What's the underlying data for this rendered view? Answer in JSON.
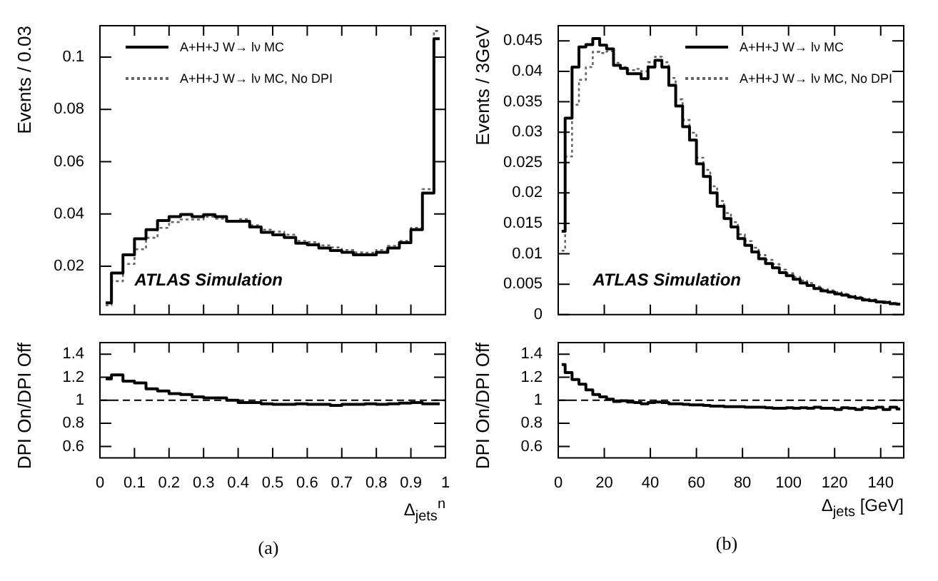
{
  "chart_data": [
    {
      "type": "step",
      "ylabel": "Events / 0.03",
      "annotations": [
        "ATLAS Simulation"
      ],
      "legend": "top left",
      "tick_labels": "y",
      "xlim": [
        0,
        1
      ],
      "xticks": [
        0,
        0.1,
        0.2,
        0.3,
        0.4,
        0.5,
        0.6,
        0.7,
        0.8,
        0.9,
        1
      ],
      "ylim": [
        0.0015,
        0.112
      ],
      "yticks": [
        0.02,
        0.04,
        0.06,
        0.08,
        0.1
      ],
      "x": [
        0.0167,
        0.05,
        0.0833,
        0.1167,
        0.15,
        0.1833,
        0.2167,
        0.25,
        0.2833,
        0.3167,
        0.35,
        0.3833,
        0.4167,
        0.45,
        0.4833,
        0.5167,
        0.55,
        0.5833,
        0.6167,
        0.65,
        0.6833,
        0.7167,
        0.75,
        0.7833,
        0.8167,
        0.85,
        0.8833,
        0.9167,
        0.95,
        0.9833
      ],
      "series": [
        {
          "name": "A+H+J W→ lν MC",
          "color": "#000000",
          "line_style": "solid",
          "values": [
            0.006,
            0.0174,
            0.0244,
            0.0305,
            0.034,
            0.0375,
            0.039,
            0.0398,
            0.039,
            0.0397,
            0.039,
            0.0372,
            0.0372,
            0.035,
            0.033,
            0.032,
            0.031,
            0.0288,
            0.0282,
            0.027,
            0.026,
            0.0253,
            0.0244,
            0.0244,
            0.0253,
            0.027,
            0.029,
            0.034,
            0.048,
            0.107
          ]
        },
        {
          "name": "A+H+J W→ lν MC, No DPI",
          "color": "#666666",
          "line_style": "dotted",
          "values": [
            0.0051,
            0.0143,
            0.0209,
            0.0265,
            0.0309,
            0.0347,
            0.0369,
            0.0379,
            0.0379,
            0.0389,
            0.0382,
            0.0372,
            0.038,
            0.0357,
            0.034,
            0.0332,
            0.0321,
            0.0297,
            0.0292,
            0.028,
            0.0272,
            0.0262,
            0.0253,
            0.0252,
            0.0262,
            0.0278,
            0.0297,
            0.0347,
            0.0495,
            0.11
          ]
        }
      ]
    },
    {
      "type": "step",
      "ylabel": "Events / 3GeV",
      "annotations": [
        "ATLAS Simulation"
      ],
      "legend": "top right",
      "tick_labels": "y",
      "xlim": [
        0,
        150
      ],
      "xticks": [
        0,
        20,
        40,
        60,
        80,
        100,
        120,
        140
      ],
      "ylim": [
        0,
        0.0475
      ],
      "yticks": [
        0,
        0.005,
        0.01,
        0.015,
        0.02,
        0.025,
        0.03,
        0.035,
        0.04,
        0.045
      ],
      "x": [
        1.5,
        4.5,
        7.5,
        10.5,
        13.5,
        16.5,
        19.5,
        22.5,
        25.5,
        28.5,
        31.5,
        34.5,
        37.5,
        40.5,
        43.5,
        46.5,
        49.5,
        52.5,
        55.5,
        58.5,
        61.5,
        64.5,
        67.5,
        70.5,
        73.5,
        76.5,
        79.5,
        82.5,
        85.5,
        88.5,
        91.5,
        94.5,
        97.5,
        100.5,
        103.5,
        106.5,
        109.5,
        112.5,
        115.5,
        118.5,
        121.5,
        124.5,
        127.5,
        130.5,
        133.5,
        136.5,
        139.5,
        142.5,
        145.5,
        148.5
      ],
      "series": [
        {
          "name": "A+H+J W→ lν MC",
          "color": "#000000",
          "line_style": "solid",
          "values": [
            0.0137,
            0.0323,
            0.0407,
            0.044,
            0.0444,
            0.0454,
            0.0443,
            0.0437,
            0.041,
            0.0405,
            0.0396,
            0.0396,
            0.0388,
            0.0407,
            0.0418,
            0.0407,
            0.0377,
            0.0343,
            0.0309,
            0.0287,
            0.0248,
            0.0227,
            0.02,
            0.0178,
            0.0158,
            0.0144,
            0.0125,
            0.0114,
            0.0103,
            0.0092,
            0.0084,
            0.0077,
            0.0069,
            0.0064,
            0.0058,
            0.0052,
            0.0048,
            0.0043,
            0.0039,
            0.0037,
            0.0034,
            0.0032,
            0.0029,
            0.0027,
            0.0024,
            0.0023,
            0.0021,
            0.002,
            0.0018,
            0.0017
          ]
        },
        {
          "name": "A+H+J W→ lν MC, No DPI",
          "color": "#666666",
          "line_style": "dotted",
          "values": [
            0.0105,
            0.026,
            0.0345,
            0.0386,
            0.0407,
            0.0432,
            0.043,
            0.0433,
            0.0414,
            0.0407,
            0.0402,
            0.0404,
            0.04,
            0.0415,
            0.0424,
            0.0415,
            0.0389,
            0.0354,
            0.032,
            0.0299,
            0.0258,
            0.0238,
            0.0211,
            0.0187,
            0.0167,
            0.0152,
            0.0132,
            0.0121,
            0.011,
            0.0098,
            0.009,
            0.0083,
            0.0074,
            0.0068,
            0.0062,
            0.0056,
            0.0052,
            0.0046,
            0.0042,
            0.004,
            0.0037,
            0.0034,
            0.0031,
            0.0029,
            0.0026,
            0.0025,
            0.0022,
            0.0022,
            0.0019,
            0.0018
          ]
        }
      ]
    },
    {
      "type": "step",
      "ylabel": "DPI On/DPI Off",
      "xlabel": "Δ$_{jets}$$^{n}$",
      "annotations": [
        "(a)"
      ],
      "xlim": [
        0,
        1
      ],
      "xticks": [
        0,
        0.1,
        0.2,
        0.3,
        0.4,
        0.5,
        0.6,
        0.7,
        0.8,
        0.9,
        1
      ],
      "ylim": [
        0.5,
        1.5
      ],
      "yticks": [
        0.6,
        0.8,
        1,
        1.2,
        1.4
      ],
      "ref_lines": [
        {
          "axis": "y",
          "value": 1,
          "line_style": "dashed"
        }
      ],
      "x": [
        0.0167,
        0.05,
        0.0833,
        0.1167,
        0.15,
        0.1833,
        0.2167,
        0.25,
        0.2833,
        0.3167,
        0.35,
        0.3833,
        0.4167,
        0.45,
        0.4833,
        0.5167,
        0.55,
        0.5833,
        0.6167,
        0.65,
        0.6833,
        0.7167,
        0.75,
        0.7833,
        0.8167,
        0.85,
        0.8833,
        0.9167,
        0.95,
        0.9833
      ],
      "series": [
        {
          "color": "#000000",
          "line_style": "solid",
          "values": [
            1.186,
            1.22,
            1.166,
            1.15,
            1.1,
            1.08,
            1.057,
            1.05,
            1.03,
            1.02,
            1.02,
            1.0,
            0.98,
            0.98,
            0.97,
            0.965,
            0.965,
            0.97,
            0.965,
            0.965,
            0.955,
            0.965,
            0.965,
            0.97,
            0.965,
            0.97,
            0.975,
            0.98,
            0.97,
            0.97
          ]
        }
      ]
    },
    {
      "type": "step",
      "ylabel": "DPI On/DPI Off",
      "xlabel": "Δ$_{jets}$ [GeV]",
      "annotations": [
        "(b)"
      ],
      "xlim": [
        0,
        150
      ],
      "xticks": [
        0,
        20,
        40,
        60,
        80,
        100,
        120,
        140
      ],
      "ylim": [
        0.5,
        1.5
      ],
      "yticks": [
        0.6,
        0.8,
        1,
        1.2,
        1.4
      ],
      "ref_lines": [
        {
          "axis": "y",
          "value": 1,
          "line_style": "dashed"
        }
      ],
      "x": [
        1.5,
        4.5,
        7.5,
        10.5,
        13.5,
        16.5,
        19.5,
        22.5,
        25.5,
        28.5,
        31.5,
        34.5,
        37.5,
        40.5,
        43.5,
        46.5,
        49.5,
        52.5,
        55.5,
        58.5,
        61.5,
        64.5,
        67.5,
        70.5,
        73.5,
        76.5,
        79.5,
        82.5,
        85.5,
        88.5,
        91.5,
        94.5,
        97.5,
        100.5,
        103.5,
        106.5,
        109.5,
        112.5,
        115.5,
        118.5,
        121.5,
        124.5,
        127.5,
        130.5,
        133.5,
        136.5,
        139.5,
        142.5,
        145.5,
        148.5
      ],
      "series": [
        {
          "color": "#000000",
          "line_style": "solid",
          "values": [
            1.31,
            1.24,
            1.18,
            1.14,
            1.09,
            1.05,
            1.03,
            1.01,
            0.99,
            0.995,
            0.985,
            0.98,
            0.97,
            0.98,
            0.985,
            0.98,
            0.97,
            0.97,
            0.965,
            0.96,
            0.96,
            0.955,
            0.95,
            0.95,
            0.945,
            0.945,
            0.945,
            0.94,
            0.94,
            0.94,
            0.935,
            0.93,
            0.93,
            0.935,
            0.93,
            0.935,
            0.93,
            0.94,
            0.93,
            0.93,
            0.92,
            0.935,
            0.93,
            0.92,
            0.935,
            0.93,
            0.94,
            0.92,
            0.94,
            0.925
          ]
        }
      ]
    }
  ]
}
